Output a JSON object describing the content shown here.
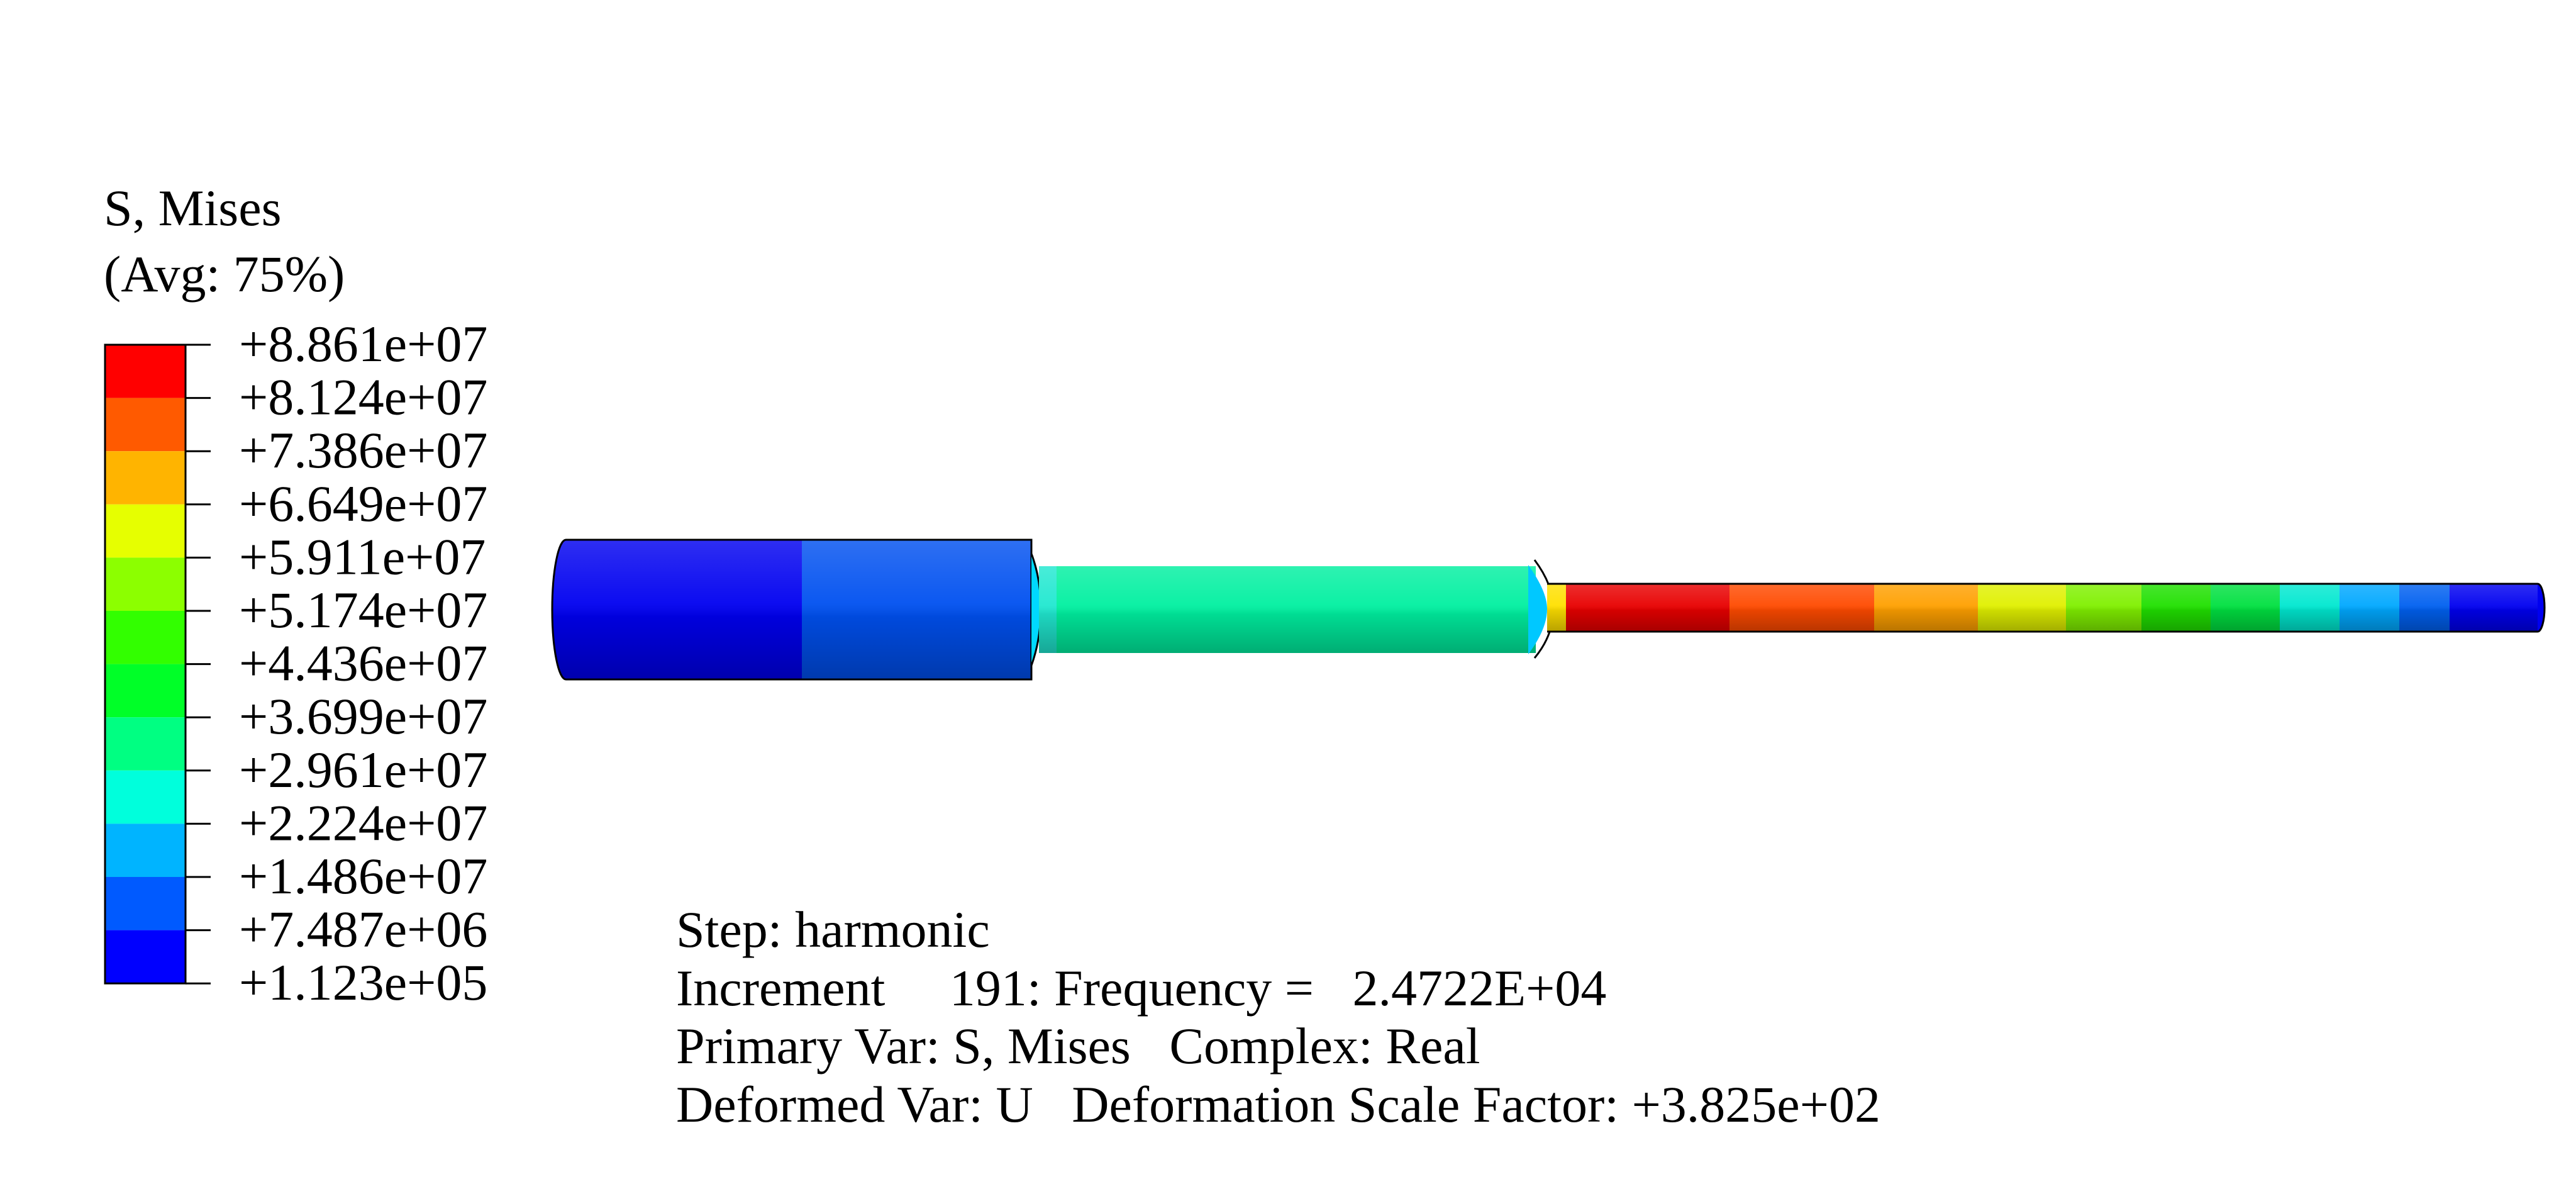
{
  "legend": {
    "title": "S, Mises",
    "subtitle": "(Avg: 75%)",
    "labels": [
      "+8.861e+07",
      "+8.124e+07",
      "+7.386e+07",
      "+6.649e+07",
      "+5.911e+07",
      "+5.174e+07",
      "+4.436e+07",
      "+3.699e+07",
      "+2.961e+07",
      "+2.224e+07",
      "+1.486e+07",
      "+7.487e+06",
      "+1.123e+05"
    ],
    "colors": [
      "#ff0000",
      "#ff5a00",
      "#ffb400",
      "#e6ff00",
      "#8cff00",
      "#32ff00",
      "#00ff28",
      "#00ff82",
      "#00ffdc",
      "#00b4ff",
      "#005aff",
      "#0000ff"
    ]
  },
  "info": {
    "step": "Step: harmonic",
    "increment": "Increment     191: Frequency =   2.4722E+04",
    "primary": "Primary Var: S, Mises   Complex: Real",
    "deformed": "Deformed Var: U   Deformation Scale Factor: +3.825e+02"
  }
}
